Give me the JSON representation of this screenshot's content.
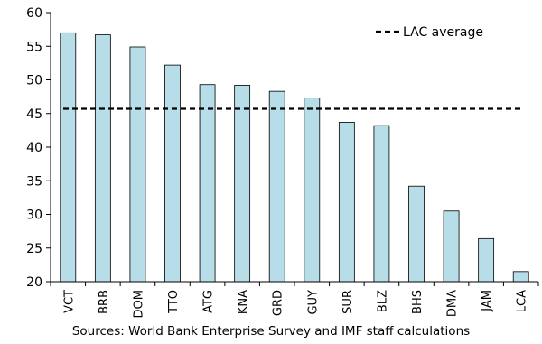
{
  "chart_data": {
    "type": "bar",
    "categories": [
      "VCT",
      "BRB",
      "DOM",
      "TTO",
      "ATG",
      "KNA",
      "GRD",
      "GUY",
      "SUR",
      "BLZ",
      "BHS",
      "DMA",
      "JAM",
      "LCA"
    ],
    "values": [
      57.0,
      56.7,
      54.9,
      52.2,
      49.3,
      49.2,
      48.3,
      47.3,
      43.7,
      43.2,
      34.2,
      30.5,
      26.4,
      21.5
    ],
    "title": "",
    "xlabel": "",
    "ylabel": "",
    "ylim": [
      20,
      60
    ],
    "yticks": [
      "20",
      "25",
      "30",
      "35",
      "40",
      "45",
      "50",
      "55",
      "60"
    ],
    "reference_line": {
      "label": "LAC average",
      "value": 45.7,
      "style": "dashed"
    },
    "legend_position": "top-right",
    "grid": false,
    "colors": {
      "bar_fill": "#b7dde8",
      "bar_stroke": "#000000",
      "reference_line": "#000000"
    }
  },
  "footer": {
    "source_note": "Sources: World Bank Enterprise Survey and IMF staff calculations"
  }
}
